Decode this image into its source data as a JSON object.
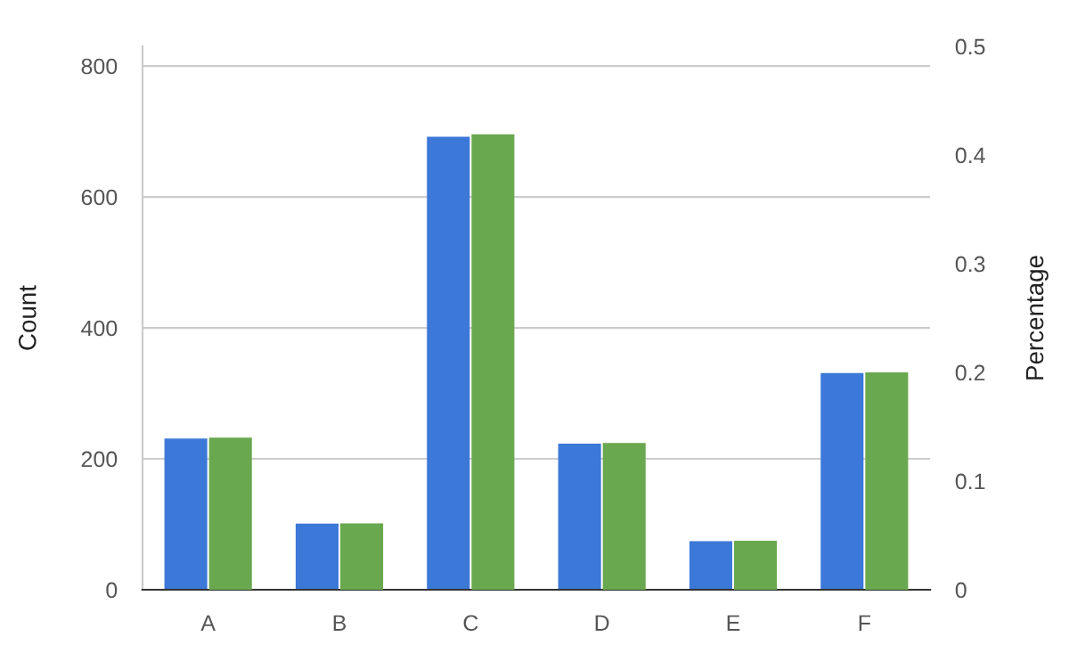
{
  "chart_data": {
    "type": "bar",
    "categories": [
      "A",
      "B",
      "C",
      "D",
      "E",
      "F"
    ],
    "ylabel": "Count",
    "y2label": "Percentage",
    "ylim": [
      0,
      830
    ],
    "yticks": [
      0,
      200,
      400,
      600,
      800
    ],
    "y2lim": [
      0,
      0.5
    ],
    "y2ticks": [
      0,
      0.1,
      0.2,
      0.3,
      0.4,
      0.5
    ],
    "grid": "y",
    "legend": false,
    "series": [
      {
        "color": "#3c78d8",
        "values": [
          231,
          101,
          692,
          223,
          74,
          331
        ]
      },
      {
        "color": "#6aa84f",
        "axis": "y2",
        "values": [
          0.14,
          0.061,
          0.419,
          0.135,
          0.045,
          0.2
        ]
      }
    ]
  }
}
